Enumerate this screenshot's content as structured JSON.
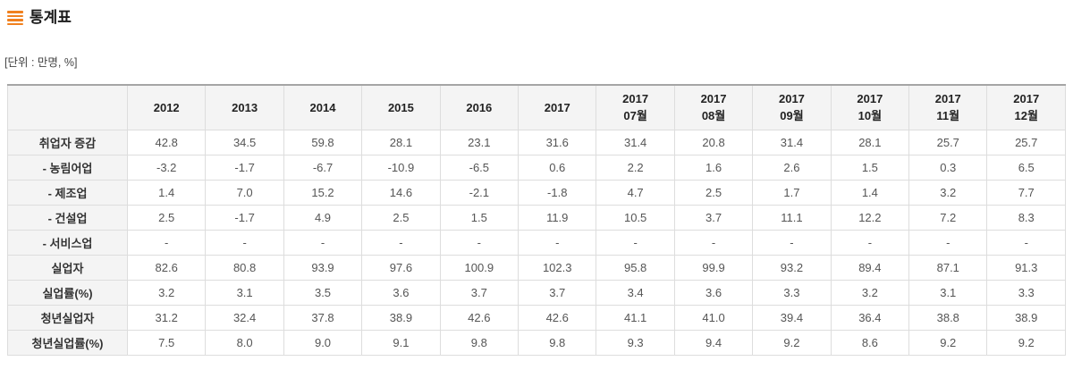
{
  "header": {
    "title": "통계표",
    "icon": "list-icon",
    "unit_label": "[단위 : 만명, %]"
  },
  "colors": {
    "accent_orange": "#f0801e",
    "header_cell_bg": "#f4f4f4",
    "border_light": "#dddddd",
    "table_top_border": "#a5a5a5",
    "title_text": "#1a1a1a",
    "cell_text": "#555555"
  },
  "chart_data": {
    "type": "table",
    "title": "통계표",
    "unit": "만명, %",
    "columns": [
      "2012",
      "2013",
      "2014",
      "2015",
      "2016",
      "2017",
      "2017\n07월",
      "2017\n08월",
      "2017\n09월",
      "2017\n10월",
      "2017\n11월",
      "2017\n12월"
    ],
    "rows": [
      {
        "label": "취업자 증감",
        "values": [
          "42.8",
          "34.5",
          "59.8",
          "28.1",
          "23.1",
          "31.6",
          "31.4",
          "20.8",
          "31.4",
          "28.1",
          "25.7",
          "25.7"
        ]
      },
      {
        "label": "- 농림어업",
        "values": [
          "-3.2",
          "-1.7",
          "-6.7",
          "-10.9",
          "-6.5",
          "0.6",
          "2.2",
          "1.6",
          "2.6",
          "1.5",
          "0.3",
          "6.5"
        ]
      },
      {
        "label": "- 제조업",
        "values": [
          "1.4",
          "7.0",
          "15.2",
          "14.6",
          "-2.1",
          "-1.8",
          "4.7",
          "2.5",
          "1.7",
          "1.4",
          "3.2",
          "7.7"
        ]
      },
      {
        "label": "- 건설업",
        "values": [
          "2.5",
          "-1.7",
          "4.9",
          "2.5",
          "1.5",
          "11.9",
          "10.5",
          "3.7",
          "11.1",
          "12.2",
          "7.2",
          "8.3"
        ]
      },
      {
        "label": "- 서비스업",
        "values": [
          "-",
          "-",
          "-",
          "-",
          "-",
          "-",
          "-",
          "-",
          "-",
          "-",
          "-",
          "-"
        ]
      },
      {
        "label": "실업자",
        "values": [
          "82.6",
          "80.8",
          "93.9",
          "97.6",
          "100.9",
          "102.3",
          "95.8",
          "99.9",
          "93.2",
          "89.4",
          "87.1",
          "91.3"
        ]
      },
      {
        "label": "실업률(%)",
        "values": [
          "3.2",
          "3.1",
          "3.5",
          "3.6",
          "3.7",
          "3.7",
          "3.4",
          "3.6",
          "3.3",
          "3.2",
          "3.1",
          "3.3"
        ]
      },
      {
        "label": "청년실업자",
        "values": [
          "31.2",
          "32.4",
          "37.8",
          "38.9",
          "42.6",
          "42.6",
          "41.1",
          "41.0",
          "39.4",
          "36.4",
          "38.8",
          "38.9"
        ]
      },
      {
        "label": "청년실업률(%)",
        "values": [
          "7.5",
          "8.0",
          "9.0",
          "9.1",
          "9.8",
          "9.8",
          "9.3",
          "9.4",
          "9.2",
          "8.6",
          "9.2",
          "9.2"
        ]
      }
    ]
  }
}
